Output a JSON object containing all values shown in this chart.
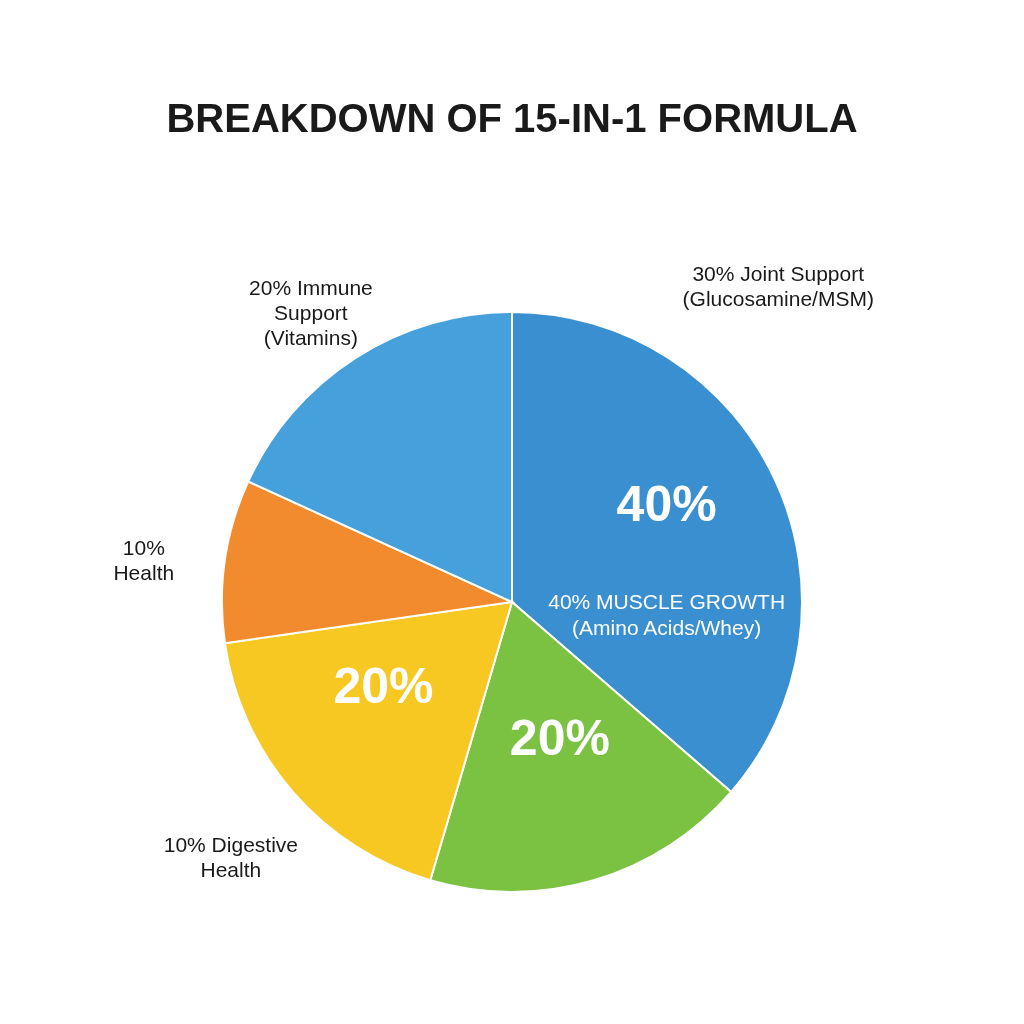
{
  "chart_data": {
    "type": "pie",
    "title": "BREAKDOWN OF 15-IN-1 FORMULA",
    "categories": [
      "40% MUSCLE GROWTH\n(Amino Acids/Whey)",
      null,
      "10% Digestive\nHealth",
      "10%\nHealth",
      "20% Immune\nSupport\n(Vitamins)"
    ],
    "values": [
      40,
      20,
      20,
      10,
      20
    ],
    "value_labels": [
      "40%",
      "20%",
      "20%",
      null,
      null
    ],
    "colors": [
      "#3a8fd0",
      "#7cc242",
      "#f7c821",
      "#f28a2e",
      "#45a0dc"
    ],
    "annotations": [
      "30% Joint Support\n(Glucosamine/MSM)"
    ]
  }
}
